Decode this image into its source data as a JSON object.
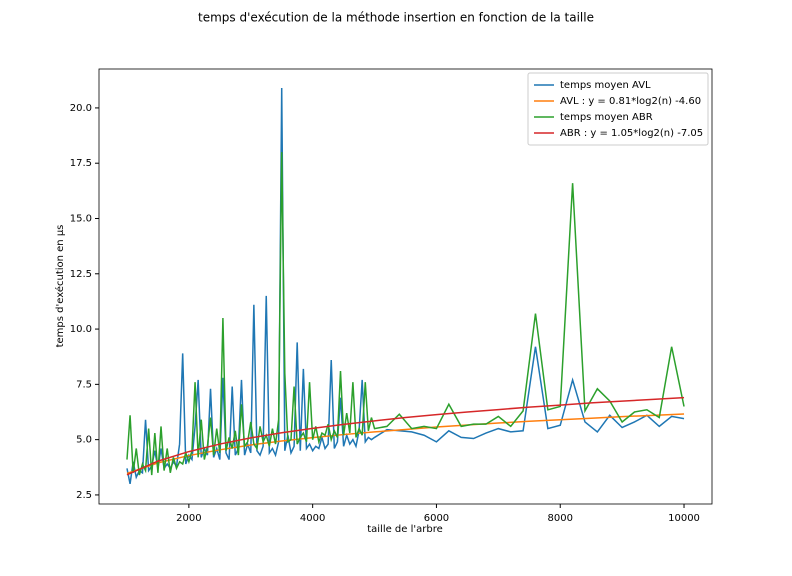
{
  "chart_data": {
    "type": "line",
    "title": "temps d'exécution de la méthode insertion en fonction de la taille",
    "x_label": "taille de l'arbre",
    "y_label": "temps d'exécution en µs",
    "xlim": [
      548,
      10452
    ],
    "xticks": [
      2000,
      4000,
      6000,
      8000,
      10000
    ],
    "ylim": [
      2.09,
      21.76
    ],
    "yticks": [
      2.5,
      {
        "value": 5,
        "label": "5.0"
      },
      7.5,
      {
        "value": 10,
        "label": "10.0"
      },
      12.5,
      {
        "value": 15,
        "label": "15.0"
      },
      17.5,
      {
        "value": 20,
        "label": "20.0"
      }
    ],
    "legend": "upper right",
    "series": [
      {
        "name": "temps moyen AVL",
        "color": "#1f77b4",
        "x": [
          1000,
          1050,
          1100,
          1150,
          1200,
          1250,
          1300,
          1350,
          1400,
          1450,
          1500,
          1550,
          1600,
          1650,
          1700,
          1750,
          1800,
          1850,
          1900,
          1950,
          2000,
          2050,
          2100,
          2150,
          2200,
          2250,
          2300,
          2350,
          2400,
          2450,
          2500,
          2550,
          2600,
          2650,
          2700,
          2750,
          2800,
          2850,
          2900,
          2950,
          3000,
          3050,
          3100,
          3150,
          3200,
          3250,
          3300,
          3350,
          3400,
          3450,
          3500,
          3550,
          3600,
          3650,
          3700,
          3750,
          3800,
          3850,
          3900,
          3950,
          4000,
          4050,
          4100,
          4150,
          4200,
          4250,
          4300,
          4350,
          4400,
          4450,
          4500,
          4550,
          4600,
          4650,
          4700,
          4750,
          4800,
          4850,
          4900,
          4950,
          5000,
          5200,
          5400,
          5600,
          5800,
          6000,
          6200,
          6400,
          6600,
          6800,
          7000,
          7200,
          7400,
          7600,
          7800,
          8000,
          8200,
          8400,
          8600,
          8800,
          9000,
          9200,
          9400,
          9600,
          9800,
          10000
        ],
        "values": [
          3.7,
          3.0,
          4.0,
          3.3,
          3.6,
          3.5,
          5.9,
          3.6,
          3.8,
          4.5,
          3.7,
          4.6,
          3.7,
          3.9,
          3.7,
          4.0,
          3.8,
          4.8,
          8.9,
          3.9,
          4.3,
          4.1,
          5.6,
          7.7,
          4.2,
          4.6,
          4.3,
          7.3,
          4.2,
          4.6,
          4.1,
          7.8,
          4.4,
          4.1,
          7.4,
          4.3,
          4.6,
          7.7,
          4.3,
          4.8,
          4.4,
          11.1,
          4.5,
          4.3,
          4.7,
          11.5,
          4.4,
          4.6,
          4.3,
          4.9,
          20.9,
          4.5,
          5.2,
          4.4,
          4.7,
          9.4,
          4.5,
          8.2,
          4.6,
          4.8,
          4.5,
          4.7,
          4.6,
          5.1,
          4.6,
          4.8,
          8.6,
          4.6,
          4.9,
          6.9,
          4.7,
          5.2,
          4.8,
          5.0,
          4.7,
          5.4,
          7.7,
          4.9,
          5.1,
          5.0,
          5.1,
          5.45,
          5.4,
          5.35,
          5.2,
          4.9,
          5.4,
          5.1,
          5.05,
          5.3,
          5.5,
          5.35,
          5.4,
          9.2,
          5.5,
          5.65,
          7.7,
          5.8,
          5.35,
          6.1,
          5.55,
          5.8,
          6.1,
          5.6,
          6.05,
          5.95
        ]
      },
      {
        "name": "AVL : y = 0.81*log2(n) -4.60",
        "color": "#ff7f0e",
        "x": [
          1000,
          1500,
          2000,
          2500,
          3000,
          3500,
          4000,
          4500,
          5000,
          5500,
          6000,
          6500,
          7000,
          7500,
          8000,
          8500,
          9000,
          9500,
          10000
        ],
        "values": [
          3.47,
          3.95,
          4.28,
          4.54,
          4.76,
          4.94,
          5.09,
          5.23,
          5.35,
          5.46,
          5.57,
          5.66,
          5.75,
          5.83,
          5.9,
          5.97,
          6.04,
          6.1,
          6.16
        ]
      },
      {
        "name": "temps moyen ABR",
        "color": "#2ca02c",
        "x": [
          1000,
          1050,
          1100,
          1150,
          1200,
          1250,
          1300,
          1350,
          1400,
          1450,
          1500,
          1550,
          1600,
          1650,
          1700,
          1750,
          1800,
          1850,
          1900,
          1950,
          2000,
          2050,
          2100,
          2150,
          2200,
          2250,
          2300,
          2350,
          2400,
          2450,
          2500,
          2550,
          2600,
          2650,
          2700,
          2750,
          2800,
          2850,
          2900,
          2950,
          3000,
          3050,
          3100,
          3150,
          3200,
          3250,
          3300,
          3350,
          3400,
          3450,
          3500,
          3550,
          3600,
          3650,
          3700,
          3750,
          3800,
          3850,
          3900,
          3950,
          4000,
          4050,
          4100,
          4150,
          4200,
          4250,
          4300,
          4350,
          4400,
          4450,
          4500,
          4550,
          4600,
          4650,
          4700,
          4750,
          4800,
          4850,
          4900,
          4950,
          5000,
          5200,
          5400,
          5600,
          5800,
          6000,
          6200,
          6400,
          6600,
          6800,
          7000,
          7200,
          7400,
          7600,
          7800,
          8000,
          8200,
          8400,
          8600,
          8800,
          9000,
          9200,
          9400,
          9600,
          9800,
          10000
        ],
        "values": [
          4.1,
          6.1,
          3.5,
          4.6,
          3.4,
          3.9,
          3.6,
          5.5,
          3.4,
          5.3,
          3.5,
          5.6,
          3.6,
          4.6,
          3.5,
          4.2,
          3.7,
          4.0,
          3.9,
          4.4,
          4.0,
          4.5,
          7.6,
          4.2,
          5.9,
          4.1,
          4.7,
          6.0,
          4.3,
          5.5,
          4.4,
          10.5,
          4.5,
          5.1,
          4.6,
          5.4,
          4.3,
          6.6,
          4.7,
          4.9,
          5.8,
          4.8,
          4.6,
          5.6,
          4.9,
          5.2,
          4.7,
          5.5,
          4.8,
          5.9,
          18.0,
          8.0,
          4.9,
          5.0,
          7.4,
          4.8,
          5.1,
          5.3,
          4.9,
          7.6,
          5.0,
          5.6,
          4.9,
          5.3,
          5.2,
          5.7,
          5.0,
          5.4,
          5.1,
          8.1,
          5.2,
          6.2,
          5.3,
          7.6,
          5.1,
          5.5,
          5.2,
          7.6,
          5.4,
          6.0,
          5.5,
          5.6,
          6.15,
          5.5,
          5.6,
          5.5,
          6.6,
          5.6,
          5.7,
          5.7,
          6.05,
          5.6,
          6.3,
          10.7,
          6.35,
          6.5,
          16.6,
          6.3,
          7.3,
          6.75,
          5.8,
          6.25,
          6.35,
          6.0,
          9.2,
          6.5
        ]
      },
      {
        "name": "ABR : y = 1.05*log2(n) -7.05",
        "color": "#d62728",
        "x": [
          1000,
          1500,
          2000,
          2500,
          3000,
          3500,
          4000,
          4500,
          5000,
          5500,
          6000,
          6500,
          7000,
          7500,
          8000,
          8500,
          9000,
          9500,
          10000
        ],
        "values": [
          3.41,
          4.03,
          4.46,
          4.8,
          5.08,
          5.31,
          5.51,
          5.69,
          5.85,
          6.0,
          6.13,
          6.25,
          6.36,
          6.47,
          6.56,
          6.66,
          6.74,
          6.82,
          6.9
        ]
      }
    ]
  }
}
